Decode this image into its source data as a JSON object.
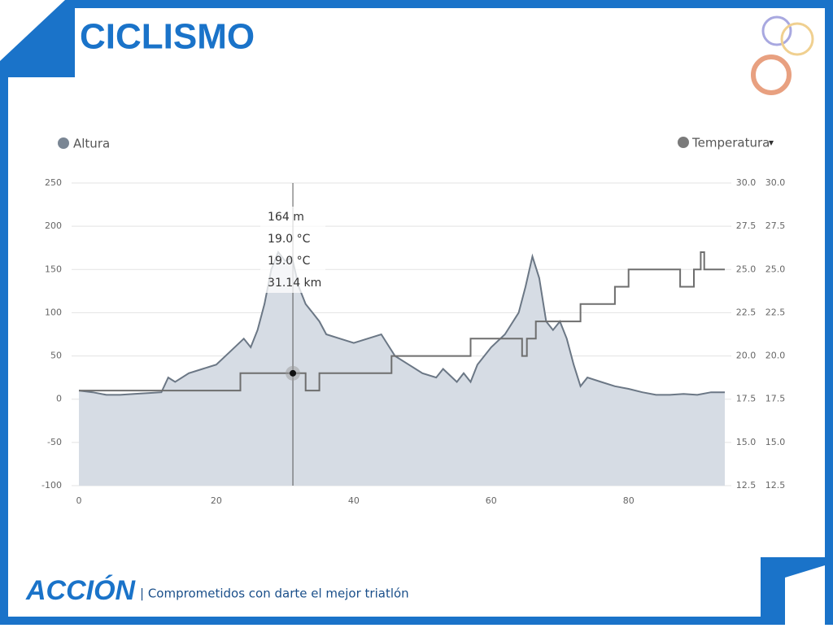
{
  "header": {
    "title": "CICLISMO"
  },
  "footer": {
    "brand": "ACCIÓN",
    "tagline": "| Comprometidos con darte el mejor triatlón"
  },
  "chart_data": {
    "type": "line",
    "legend": [
      "Altura",
      "Temperatura"
    ],
    "xlim": [
      0,
      94
    ],
    "xticks": [
      0,
      20,
      40,
      60,
      80
    ],
    "ylim": [
      -100,
      250
    ],
    "yticks": [
      -100,
      -50,
      0,
      50,
      100,
      150,
      200,
      250
    ],
    "y2lim": [
      12.5,
      30
    ],
    "y2ticks": [
      {
        "value": 12.5,
        "label": "12.5"
      },
      {
        "value": 15,
        "label": "15.0"
      },
      {
        "value": 17.5,
        "label": "17.5"
      },
      {
        "value": 20,
        "label": "20.0"
      },
      {
        "value": 22.5,
        "label": "22.5"
      },
      {
        "value": 25,
        "label": "25.0"
      },
      {
        "value": 27.5,
        "label": "27.5"
      },
      {
        "value": 30,
        "label": "30.0"
      }
    ],
    "grid": true,
    "series": [
      {
        "name": "Altura",
        "color": "#6b7785",
        "fill": "#d6dce4",
        "x": [
          0,
          2,
          4,
          6,
          8,
          10,
          12,
          13,
          14,
          16,
          18,
          20,
          22,
          24,
          25,
          26,
          27,
          28,
          29,
          30,
          31,
          32,
          33,
          34,
          35,
          36,
          38,
          40,
          42,
          44,
          46,
          48,
          50,
          52,
          53,
          55,
          56,
          57,
          58,
          60,
          62,
          64,
          65,
          66,
          67,
          68,
          69,
          70,
          71,
          72,
          73,
          74,
          76,
          78,
          80,
          82,
          84,
          86,
          88,
          90,
          92,
          94
        ],
        "values": [
          10,
          8,
          5,
          5,
          6,
          7,
          8,
          25,
          20,
          30,
          35,
          40,
          55,
          70,
          60,
          80,
          110,
          150,
          170,
          160,
          164,
          130,
          110,
          100,
          90,
          75,
          70,
          65,
          70,
          75,
          50,
          40,
          30,
          25,
          35,
          20,
          30,
          20,
          40,
          60,
          75,
          100,
          130,
          165,
          140,
          90,
          80,
          90,
          70,
          40,
          15,
          25,
          20,
          15,
          12,
          8,
          5,
          5,
          6,
          5,
          8,
          8
        ]
      },
      {
        "name": "Temperatura",
        "color": "#6e6e6e",
        "axis": "y2",
        "x": [
          0,
          23.5,
          23.5,
          33,
          33,
          35,
          35,
          45.5,
          45.5,
          57,
          57,
          64.5,
          64.5,
          65.2,
          65.2,
          66.5,
          66.5,
          73,
          73,
          78,
          78,
          80,
          80,
          87.5,
          87.5,
          89.5,
          89.5,
          90.5,
          90.5,
          91,
          91,
          94
        ],
        "values": [
          18,
          18,
          19,
          19,
          18,
          18,
          19,
          19,
          20,
          20,
          21,
          21,
          20,
          20,
          21,
          21,
          22,
          22,
          23,
          23,
          24,
          24,
          25,
          25,
          24,
          24,
          25,
          25,
          26,
          26,
          25,
          25
        ]
      }
    ],
    "tooltip": {
      "x": {
        "value": 31.14,
        "label": "31.14 km"
      },
      "altitude": {
        "value": 164,
        "label": "164 m"
      },
      "temperatures": [
        {
          "value": 19,
          "label": "19.0 °C"
        },
        {
          "value": 19,
          "label": "19.0 °C"
        }
      ]
    }
  }
}
